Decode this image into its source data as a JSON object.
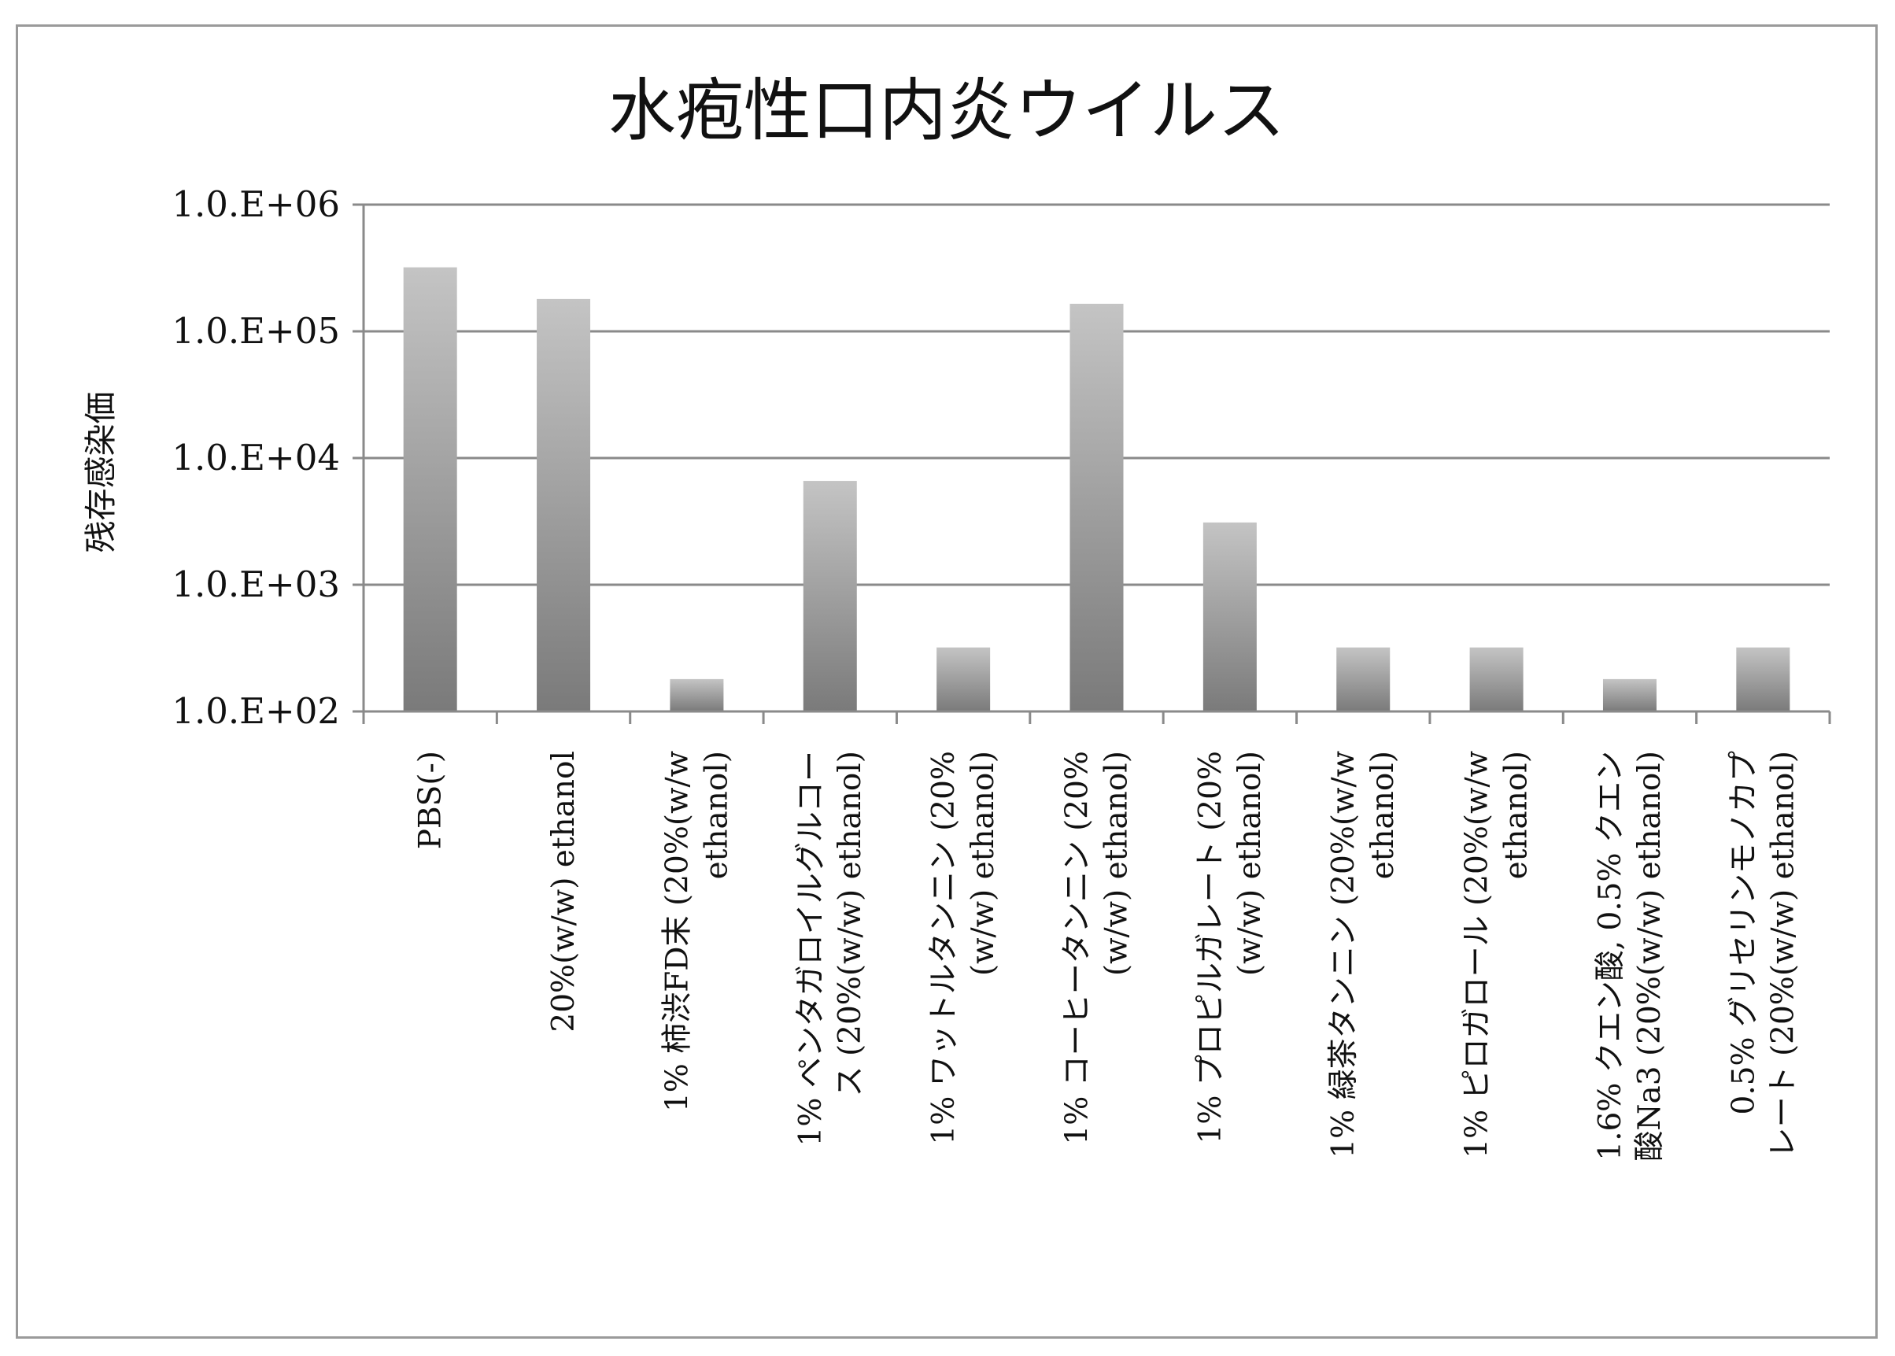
{
  "chart_data": {
    "type": "bar",
    "title": "水疱性口内炎ウイルス",
    "xlabel": "",
    "ylabel": "残存感染価",
    "y_scale": "log",
    "ylim": [
      100,
      1000000
    ],
    "y_ticks": [
      {
        "value": 100,
        "label": "1.0.E+02"
      },
      {
        "value": 1000,
        "label": "1.0.E+03"
      },
      {
        "value": 10000,
        "label": "1.0.E+04"
      },
      {
        "value": 100000,
        "label": "1.0.E+05"
      },
      {
        "value": 1000000,
        "label": "1.0.E+06"
      }
    ],
    "grid": true,
    "legend": "none",
    "bar_color_top": "#c4c4c4",
    "bar_color_bottom": "#7a7a7a",
    "categories": [
      [
        "PBS(-)"
      ],
      [
        "20%(w/w) ethanol"
      ],
      [
        "1% 柿渋FD末 (20%(w/w",
        "ethanol)"
      ],
      [
        "1% ペンタガロイルグルコー",
        "ス (20%(w/w) ethanol)"
      ],
      [
        "1% ワットルタンニン (20%",
        "(w/w) ethanol)"
      ],
      [
        "1% コーヒータンニン (20%",
        "(w/w) ethanol)"
      ],
      [
        "1% プロピルガレート (20%",
        "(w/w) ethanol)"
      ],
      [
        "1% 緑茶タンニン (20%(w/w",
        "ethanol)"
      ],
      [
        "1% ピロガロール (20%(w/w",
        "ethanol)"
      ],
      [
        "1.6% クエン酸, 0.5% クエン",
        "酸Na3 (20%(w/w) ethanol)"
      ],
      [
        "0.5% グリセリンモノカプ",
        "レート (20%(w/w) ethanol)"
      ]
    ],
    "values": [
      320000,
      180000,
      180,
      6600,
      320,
      165000,
      3100,
      320,
      320,
      180,
      320
    ]
  }
}
